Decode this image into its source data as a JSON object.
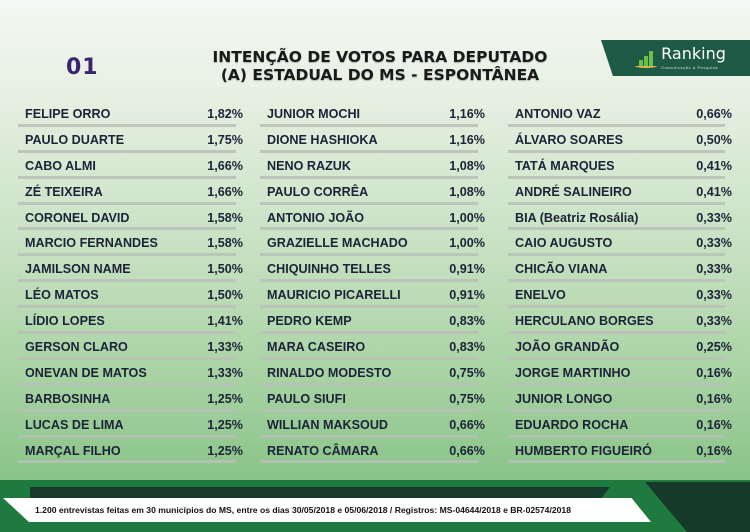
{
  "header": {
    "page_number": "01",
    "title_line1": "INTENÇÃO DE VOTOS PARA DEPUTADO",
    "title_line2": "(A) ESTADUAL DO MS - ESPONTÂNEA",
    "logo": {
      "name": "Ranking",
      "subtitle": "Comunicação & Pesquisa",
      "icon": "bar-chart-growth-icon"
    }
  },
  "columns": [
    [
      {
        "name": "FELIPE ORRO",
        "pct": "1,82%"
      },
      {
        "name": "PAULO DUARTE",
        "pct": "1,75%"
      },
      {
        "name": "CABO ALMI",
        "pct": "1,66%"
      },
      {
        "name": "ZÉ TEIXEIRA",
        "pct": "1,66%"
      },
      {
        "name": "CORONEL DAVID",
        "pct": "1,58%"
      },
      {
        "name": "MARCIO FERNANDES",
        "pct": "1,58%"
      },
      {
        "name": "JAMILSON NAME",
        "pct": "1,50%"
      },
      {
        "name": "LÉO MATOS",
        "pct": "1,50%"
      },
      {
        "name": "LÍDIO LOPES",
        "pct": "1,41%"
      },
      {
        "name": "GERSON CLARO",
        "pct": "1,33%"
      },
      {
        "name": "ONEVAN DE MATOS",
        "pct": "1,33%"
      },
      {
        "name": "BARBOSINHA",
        "pct": "1,25%"
      },
      {
        "name": "LUCAS DE LIMA",
        "pct": "1,25%"
      },
      {
        "name": "MARÇAL FILHO",
        "pct": "1,25%"
      }
    ],
    [
      {
        "name": "JUNIOR MOCHI",
        "pct": "1,16%"
      },
      {
        "name": "DIONE HASHIOKA",
        "pct": "1,16%"
      },
      {
        "name": "NENO RAZUK",
        "pct": "1,08%"
      },
      {
        "name": "PAULO CORRÊA",
        "pct": "1,08%"
      },
      {
        "name": "ANTONIO JOÃO",
        "pct": "1,00%"
      },
      {
        "name": "GRAZIELLE MACHADO",
        "pct": "1,00%"
      },
      {
        "name": "CHIQUINHO TELLES",
        "pct": "0,91%"
      },
      {
        "name": "MAURICIO PICARELLI",
        "pct": "0,91%"
      },
      {
        "name": "PEDRO KEMP",
        "pct": "0,83%"
      },
      {
        "name": "MARA CASEIRO",
        "pct": "0,83%"
      },
      {
        "name": "RINALDO MODESTO",
        "pct": "0,75%"
      },
      {
        "name": "PAULO SIUFI",
        "pct": "0,75%"
      },
      {
        "name": "WILLIAN MAKSOUD",
        "pct": "0,66%"
      },
      {
        "name": "RENATO CÂMARA",
        "pct": "0,66%"
      }
    ],
    [
      {
        "name": "ANTONIO VAZ",
        "pct": "0,66%"
      },
      {
        "name": "ÁLVARO SOARES",
        "pct": "0,50%"
      },
      {
        "name": "TATÁ MARQUES",
        "pct": "0,41%"
      },
      {
        "name": "ANDRÉ SALINEIRO",
        "pct": "0,41%"
      },
      {
        "name": "BIA (Beatriz Rosália)",
        "pct": "0,33%"
      },
      {
        "name": "CAIO AUGUSTO",
        "pct": "0,33%"
      },
      {
        "name": "CHICÃO VIANA",
        "pct": "0,33%"
      },
      {
        "name": "ENELVO",
        "pct": "0,33%"
      },
      {
        "name": "HERCULANO BORGES",
        "pct": "0,33%"
      },
      {
        "name": "JOÃO GRANDÃO",
        "pct": "0,25%"
      },
      {
        "name": "JORGE MARTINHO",
        "pct": "0,16%"
      },
      {
        "name": "JUNIOR LONGO",
        "pct": "0,16%"
      },
      {
        "name": "EDUARDO ROCHA",
        "pct": "0,16%"
      },
      {
        "name": "HUMBERTO FIGUEIRÓ",
        "pct": "0,16%"
      }
    ]
  ],
  "footer": {
    "text": "1.200 entrevistas feitas em 30 municípios do MS, entre os dias 30/05/2018 e 05/06/2018 / Registros: MS-04644/2018 e BR-02574/2018"
  },
  "colors": {
    "text_dark": "#1c2238",
    "page_number": "#3a2470",
    "logo_bg": "#1e5a45",
    "footer_green": "#1e7a3f",
    "footer_dark": "#173a2c"
  }
}
